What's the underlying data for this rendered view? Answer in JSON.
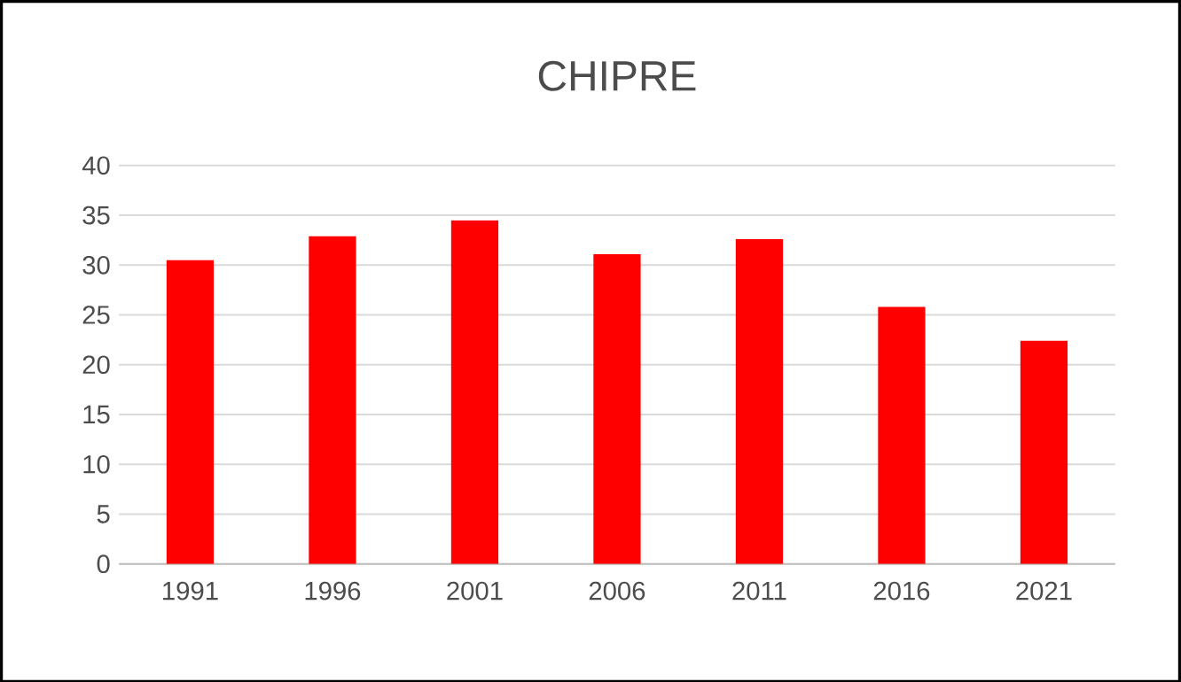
{
  "chart_data": {
    "type": "bar",
    "title": "CHIPRE",
    "categories": [
      "1991",
      "1996",
      "2001",
      "2006",
      "2011",
      "2016",
      "2021"
    ],
    "values": [
      30.5,
      32.9,
      34.5,
      31.1,
      32.6,
      25.8,
      22.4
    ],
    "color": "#ff0000",
    "ylim": [
      0,
      40
    ],
    "yticks": [
      0,
      5,
      10,
      15,
      20,
      25,
      30,
      35,
      40
    ],
    "grid": "y"
  }
}
